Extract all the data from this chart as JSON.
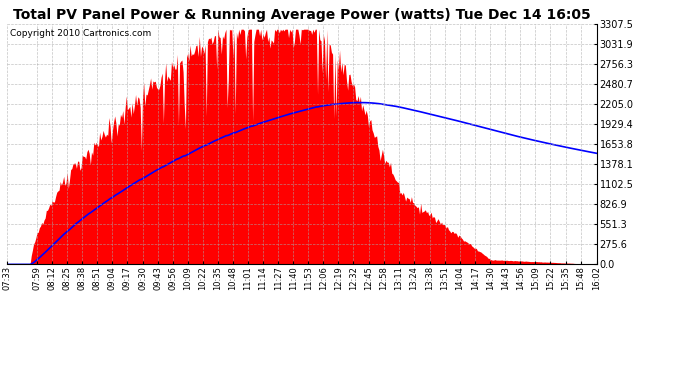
{
  "title": "Total PV Panel Power & Running Average Power (watts) Tue Dec 14 16:05",
  "copyright": "Copyright 2010 Cartronics.com",
  "y_max": 3307.5,
  "y_min": 0.0,
  "y_ticks": [
    0.0,
    275.6,
    551.3,
    826.9,
    1102.5,
    1378.1,
    1653.8,
    1929.4,
    2205.0,
    2480.7,
    2756.3,
    3031.9,
    3307.5
  ],
  "x_labels": [
    "07:33",
    "07:59",
    "08:12",
    "08:25",
    "08:38",
    "08:51",
    "09:04",
    "09:17",
    "09:30",
    "09:43",
    "09:56",
    "10:09",
    "10:22",
    "10:35",
    "10:48",
    "11:01",
    "11:14",
    "11:27",
    "11:40",
    "11:53",
    "12:06",
    "12:19",
    "12:32",
    "12:45",
    "12:58",
    "13:11",
    "13:24",
    "13:38",
    "13:51",
    "14:04",
    "14:17",
    "14:30",
    "14:43",
    "14:56",
    "15:09",
    "15:22",
    "15:35",
    "15:48",
    "16:02"
  ],
  "background_color": "#ffffff",
  "fill_color": "#ff0000",
  "line_color": "#0000ff",
  "grid_color": "#aaaaaa",
  "title_fontsize": 11,
  "copyright_fontsize": 7
}
